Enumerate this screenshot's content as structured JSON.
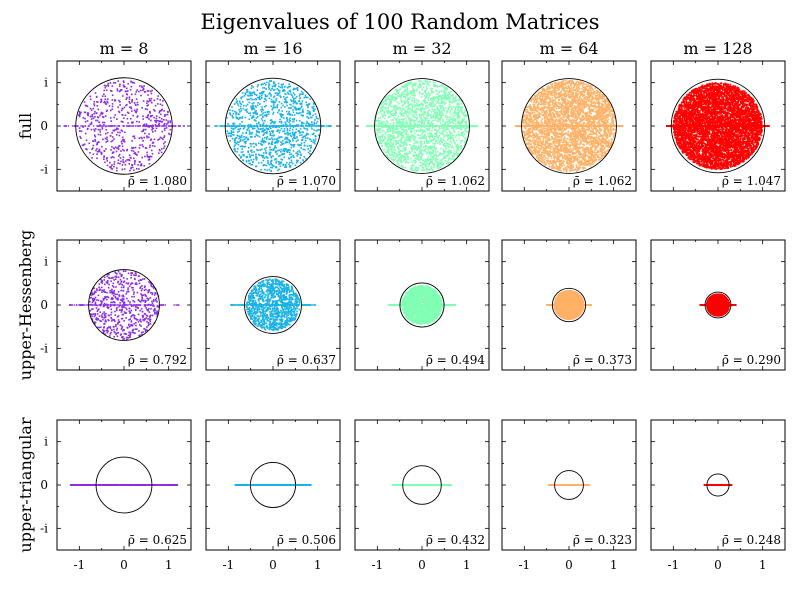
{
  "title": "Eigenvalues of 100 Random Matrices",
  "row_labels": [
    "full",
    "upper-Hessenberg",
    "upper-triangular"
  ],
  "column_labels": [
    "m = 8",
    "m = 16",
    "m = 32",
    "m = 64",
    "m = 128"
  ],
  "colors": [
    "#8a2be2",
    "#1ab2e6",
    "#80ffb4",
    "#ffb266",
    "#ff0000"
  ],
  "axis": {
    "xlim": [
      -1.5,
      1.5
    ],
    "ylim": [
      -1.5,
      1.5
    ],
    "x_ticks": [
      {
        "value": -1,
        "label": "-1"
      },
      {
        "value": 0,
        "label": "0"
      },
      {
        "value": 1,
        "label": "1"
      }
    ],
    "y_ticks": [
      {
        "value": 1,
        "label": "i"
      },
      {
        "value": 0,
        "label": "0"
      },
      {
        "value": -1,
        "label": "-i"
      }
    ]
  },
  "chart_data": {
    "type": "scatter",
    "title": "Eigenvalues of 100 Random Matrices",
    "rows": [
      "full",
      "upper-Hessenberg",
      "upper-triangular"
    ],
    "columns": [
      "m = 8",
      "m = 16",
      "m = 32",
      "m = 64",
      "m = 128"
    ],
    "xlim": [
      -1.5,
      1.5
    ],
    "ylim": [
      -1.5,
      1.5
    ],
    "grid": false,
    "panels": [
      {
        "row": "full",
        "column": "m = 8",
        "rho_label": "ρ̄ = 1.080",
        "rho": 1.08,
        "real_extent": 1.35,
        "imag_extent": 1.05
      },
      {
        "row": "full",
        "column": "m = 16",
        "rho_label": "ρ̄ = 1.070",
        "rho": 1.07,
        "real_extent": 1.3,
        "imag_extent": 1.05
      },
      {
        "row": "full",
        "column": "m = 32",
        "rho_label": "ρ̄ = 1.062",
        "rho": 1.062,
        "real_extent": 1.25,
        "imag_extent": 1.05
      },
      {
        "row": "full",
        "column": "m = 64",
        "rho_label": "ρ̄ = 1.062",
        "rho": 1.062,
        "real_extent": 1.2,
        "imag_extent": 1.05
      },
      {
        "row": "full",
        "column": "m = 128",
        "rho_label": "ρ̄ = 1.047",
        "rho": 1.047,
        "real_extent": 1.15,
        "imag_extent": 1.0
      },
      {
        "row": "upper-Hessenberg",
        "column": "m = 8",
        "rho_label": "ρ̄ = 0.792",
        "rho": 0.792,
        "real_extent": 1.25,
        "imag_extent": 0.8
      },
      {
        "row": "upper-Hessenberg",
        "column": "m = 16",
        "rho_label": "ρ̄ = 0.637",
        "rho": 0.637,
        "real_extent": 0.95,
        "imag_extent": 0.6
      },
      {
        "row": "upper-Hessenberg",
        "column": "m = 32",
        "rho_label": "ρ̄ = 0.494",
        "rho": 0.494,
        "real_extent": 0.75,
        "imag_extent": 0.45
      },
      {
        "row": "upper-Hessenberg",
        "column": "m = 64",
        "rho_label": "ρ̄ = 0.373",
        "rho": 0.373,
        "real_extent": 0.5,
        "imag_extent": 0.33
      },
      {
        "row": "upper-Hessenberg",
        "column": "m = 128",
        "rho_label": "ρ̄ = 0.290",
        "rho": 0.29,
        "real_extent": 0.4,
        "imag_extent": 0.25
      },
      {
        "row": "upper-triangular",
        "column": "m = 8",
        "rho_label": "ρ̄ = 0.625",
        "rho": 0.625,
        "real_extent": 1.2,
        "imag_extent": 0
      },
      {
        "row": "upper-triangular",
        "column": "m = 16",
        "rho_label": "ρ̄ = 0.506",
        "rho": 0.506,
        "real_extent": 0.85,
        "imag_extent": 0
      },
      {
        "row": "upper-triangular",
        "column": "m = 32",
        "rho_label": "ρ̄ = 0.432",
        "rho": 0.432,
        "real_extent": 0.65,
        "imag_extent": 0
      },
      {
        "row": "upper-triangular",
        "column": "m = 64",
        "rho_label": "ρ̄ = 0.323",
        "rho": 0.323,
        "real_extent": 0.45,
        "imag_extent": 0
      },
      {
        "row": "upper-triangular",
        "column": "m = 128",
        "rho_label": "ρ̄ = 0.248",
        "rho": 0.248,
        "real_extent": 0.3,
        "imag_extent": 0
      }
    ]
  }
}
